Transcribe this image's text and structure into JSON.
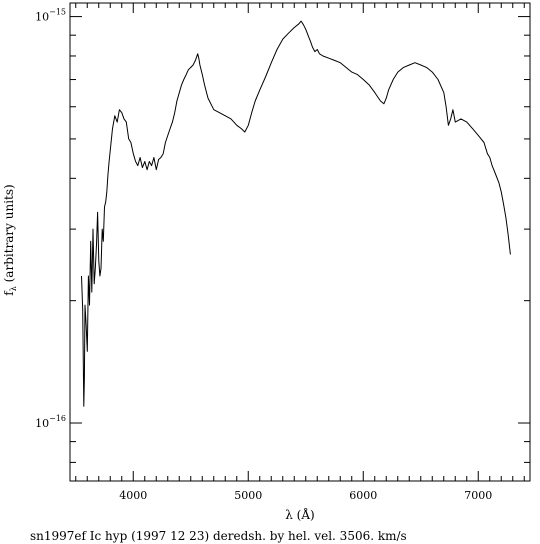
{
  "chart_data": {
    "type": "line",
    "title": "",
    "caption": "sn1997ef Ic hyp (1997 12 23) deredsh. by hel. vel. 3506. km/s",
    "xlabel": "λ (Å)",
    "ylabel_main": "f",
    "ylabel_sub": "λ",
    "ylabel_rest": " (arbitrary units)",
    "xlim": [
      3450,
      7450
    ],
    "ylim": [
      7.2e-17,
      1.08e-15
    ],
    "yscale": "log",
    "x_ticks": [
      {
        "value": 4000,
        "label": "4000"
      },
      {
        "value": 5000,
        "label": "5000"
      },
      {
        "value": 6000,
        "label": "6000"
      },
      {
        "value": 7000,
        "label": "7000"
      }
    ],
    "y_ticks": [
      {
        "value": 1e-15,
        "base": "10",
        "exp": "−15"
      },
      {
        "value": 1e-16,
        "base": "10",
        "exp": "−16"
      }
    ],
    "series": [
      {
        "x": [
          3550,
          3560,
          3570,
          3575,
          3580,
          3590,
          3600,
          3610,
          3620,
          3630,
          3640,
          3650,
          3660,
          3670,
          3680,
          3690,
          3700,
          3710,
          3720,
          3730,
          3740,
          3750,
          3760,
          3770,
          3780,
          3790,
          3800,
          3820,
          3840,
          3860,
          3880,
          3900,
          3920,
          3940,
          3960,
          3980,
          4000,
          4020,
          4040,
          4060,
          4080,
          4100,
          4120,
          4140,
          4160,
          4180,
          4200,
          4220,
          4240,
          4260,
          4280,
          4300,
          4320,
          4340,
          4360,
          4380,
          4400,
          4420,
          4440,
          4460,
          4480,
          4500,
          4520,
          4540,
          4560,
          4570,
          4580,
          4600,
          4620,
          4650,
          4700,
          4750,
          4800,
          4850,
          4900,
          4940,
          4970,
          5000,
          5030,
          5060,
          5100,
          5150,
          5200,
          5250,
          5300,
          5350,
          5400,
          5440,
          5460,
          5480,
          5500,
          5520,
          5540,
          5560,
          5580,
          5600,
          5620,
          5650,
          5700,
          5750,
          5800,
          5850,
          5900,
          5950,
          6000,
          6050,
          6100,
          6150,
          6180,
          6200,
          6220,
          6260,
          6300,
          6350,
          6400,
          6450,
          6500,
          6550,
          6600,
          6650,
          6700,
          6720,
          6740,
          6760,
          6780,
          6800,
          6850,
          6900,
          6950,
          7000,
          7050,
          7080,
          7100,
          7120,
          7150,
          7180,
          7200,
          7220,
          7240,
          7260,
          7280
        ],
        "y": [
          2.3e-16,
          1.9e-16,
          1.1e-16,
          1.3e-16,
          1.95e-16,
          1.75e-16,
          1.5e-16,
          2.3e-16,
          1.95e-16,
          2.8e-16,
          2.1e-16,
          3e-16,
          2.2e-16,
          2.4e-16,
          2.75e-16,
          3.3e-16,
          2.5e-16,
          2.3e-16,
          2.4e-16,
          3e-16,
          2.8e-16,
          3.4e-16,
          3.5e-16,
          3.7e-16,
          4.1e-16,
          4.4e-16,
          4.7e-16,
          5.3e-16,
          5.7e-16,
          5.5e-16,
          5.9e-16,
          5.8e-16,
          5.6e-16,
          5.5e-16,
          5e-16,
          4.9e-16,
          4.6e-16,
          4.4e-16,
          4.3e-16,
          4.5e-16,
          4.25e-16,
          4.4e-16,
          4.2e-16,
          4.4e-16,
          4.3e-16,
          4.5e-16,
          4.2e-16,
          4.45e-16,
          4.5e-16,
          4.6e-16,
          4.9e-16,
          5.1e-16,
          5.3e-16,
          5.5e-16,
          5.8e-16,
          6.2e-16,
          6.5e-16,
          6.8e-16,
          7e-16,
          7.2e-16,
          7.4e-16,
          7.5e-16,
          7.6e-16,
          7.8e-16,
          8.1e-16,
          7.9e-16,
          7.6e-16,
          7.2e-16,
          6.8e-16,
          6.3e-16,
          5.9e-16,
          5.8e-16,
          5.7e-16,
          5.6e-16,
          5.4e-16,
          5.3e-16,
          5.2e-16,
          5.4e-16,
          5.8e-16,
          6.2e-16,
          6.6e-16,
          7.1e-16,
          7.7e-16,
          8.3e-16,
          8.8e-16,
          9.1e-16,
          9.4e-16,
          9.6e-16,
          9.75e-16,
          9.55e-16,
          9.3e-16,
          9e-16,
          8.7e-16,
          8.4e-16,
          8.2e-16,
          8.3e-16,
          8.1e-16,
          8e-16,
          7.9e-16,
          7.8e-16,
          7.7e-16,
          7.5e-16,
          7.3e-16,
          7.2e-16,
          7e-16,
          6.8e-16,
          6.5e-16,
          6.2e-16,
          6.1e-16,
          6.3e-16,
          6.6e-16,
          7e-16,
          7.3e-16,
          7.5e-16,
          7.6e-16,
          7.7e-16,
          7.6e-16,
          7.5e-16,
          7.3e-16,
          7e-16,
          6.5e-16,
          6e-16,
          5.4e-16,
          5.6e-16,
          5.9e-16,
          5.5e-16,
          5.6e-16,
          5.5e-16,
          5.3e-16,
          5.1e-16,
          4.9e-16,
          4.6e-16,
          4.5e-16,
          4.3e-16,
          4.1e-16,
          3.9e-16,
          3.7e-16,
          3.45e-16,
          3.2e-16,
          2.9e-16,
          2.6e-16
        ]
      }
    ]
  }
}
